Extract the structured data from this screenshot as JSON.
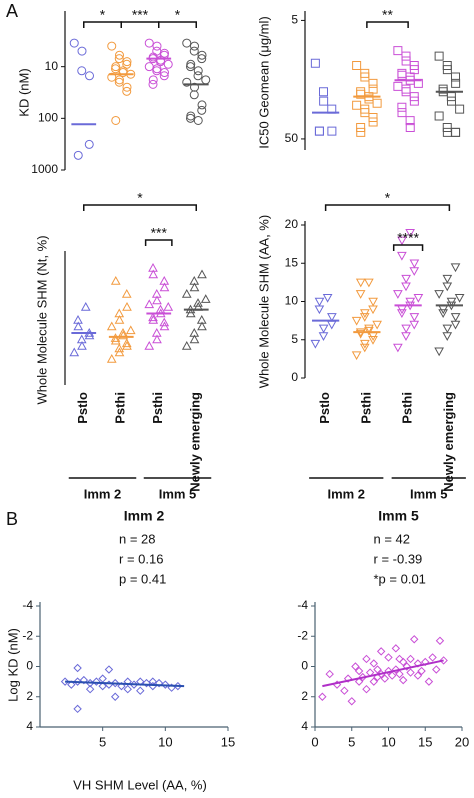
{
  "panel_labels": [
    "A",
    "B"
  ],
  "chart_data": [
    {
      "type": "dot",
      "ylabel": "KD (nM)",
      "log": true,
      "ylim": [
        1000,
        1
      ],
      "yticks": [
        10,
        100,
        1000
      ],
      "marker": "circle",
      "groups": [
        {
          "color": "#6a6ad8",
          "values": [
            3.5,
            5,
            12,
            15,
            320,
            520
          ],
          "center": 130
        },
        {
          "color": "#f29a3e",
          "values": [
            4,
            6,
            7,
            8,
            9,
            10,
            11,
            12,
            13,
            14,
            16,
            18,
            20,
            25,
            30,
            110
          ],
          "center": 14
        },
        {
          "color": "#c94fd6",
          "values": [
            3.5,
            4,
            5,
            5.5,
            6,
            6.5,
            7,
            7.5,
            8,
            9,
            10,
            11,
            12,
            13,
            15,
            18,
            22
          ],
          "center": 7
        },
        {
          "color": "#555555",
          "values": [
            3.5,
            4,
            5,
            6,
            7,
            9,
            10,
            12,
            15,
            18,
            20,
            25,
            35,
            55,
            70,
            90,
            100,
            110
          ],
          "center": 22
        }
      ],
      "brackets": [
        {
          "from": 1,
          "to": 2,
          "label": "*"
        },
        {
          "from": 2,
          "to": 3,
          "label": "***"
        },
        {
          "from": 3,
          "to": 4,
          "label": "*"
        }
      ]
    },
    {
      "type": "dot",
      "ylabel": "IC50 Geomean (μg/ml)",
      "log": true,
      "ylim": [
        62,
        4.5
      ],
      "yticks": [
        5,
        50
      ],
      "marker": "square",
      "groups": [
        {
          "color": "#6a6ad8",
          "values": [
            11.5,
            20,
            24,
            28,
            43,
            43,
            43
          ],
          "center": 30
        },
        {
          "color": "#f29a3e",
          "values": [
            12,
            14,
            15,
            17,
            19,
            20,
            21,
            22,
            23,
            25,
            26,
            28,
            30,
            33,
            36,
            40,
            44
          ],
          "center": 22
        },
        {
          "color": "#c94fd6",
          "values": [
            9,
            10,
            11,
            12,
            13,
            14,
            14.5,
            15,
            16,
            17,
            18,
            19,
            20,
            22,
            24,
            27,
            30,
            35,
            40
          ],
          "center": 16
        },
        {
          "color": "#555555",
          "values": [
            10,
            12,
            13,
            15,
            17,
            19,
            20,
            22,
            24,
            28,
            32,
            40,
            44,
            44,
            44
          ],
          "center": 20
        }
      ],
      "brackets": [
        {
          "from": 2,
          "to": 3,
          "label": "**"
        }
      ]
    },
    {
      "type": "dot",
      "ylabel": "Whole Molecule SHM (Nt, %)",
      "ylim": [
        0,
        10
      ],
      "marker": "triangle-up",
      "categories": [
        "Pstlo",
        "Psthi",
        "Psthi",
        "Newly emerging"
      ],
      "group_labels": [
        {
          "label": "Imm 2",
          "from": 0,
          "to": 1
        },
        {
          "label": "Imm 5",
          "from": 2,
          "to": 3
        }
      ],
      "groups": [
        {
          "color": "#6a6ad8",
          "values": [
            2.5,
            3,
            3.5,
            3.8,
            4,
            4.5,
            5,
            6
          ],
          "center": 4
        },
        {
          "color": "#f29a3e",
          "values": [
            2,
            2.5,
            2.8,
            3,
            3.2,
            3.4,
            3.6,
            3.8,
            4,
            4.2,
            4.5,
            5,
            5.5,
            6,
            7,
            8
          ],
          "center": 3.7
        },
        {
          "color": "#c94fd6",
          "values": [
            3,
            3.5,
            4,
            4.5,
            4.8,
            5,
            5.2,
            5.5,
            5.8,
            6,
            6.2,
            6.5,
            7,
            7.5,
            8,
            8.5,
            9
          ],
          "center": 5.5
        },
        {
          "color": "#555555",
          "values": [
            3,
            3.5,
            4,
            4.5,
            5,
            5.5,
            5.8,
            6,
            6.3,
            6.6,
            7,
            7.5,
            8,
            8.5
          ],
          "center": 5.8
        }
      ],
      "brackets": [
        {
          "from": 0,
          "to": 3,
          "label": "*"
        },
        {
          "from": 2,
          "to": 2,
          "label": "***"
        }
      ]
    },
    {
      "type": "dot",
      "ylabel": "Whole Molecule SHM (AA, %)",
      "ylim": [
        0,
        20
      ],
      "yticks": [
        0,
        5,
        10,
        15,
        20
      ],
      "marker": "triangle-down",
      "categories": [
        "Pstlo",
        "Psthi",
        "Psthi",
        "Newly emerging"
      ],
      "group_labels": [
        {
          "label": "Imm 2",
          "from": 0,
          "to": 1
        },
        {
          "label": "Imm 5",
          "from": 2,
          "to": 3
        }
      ],
      "groups": [
        {
          "color": "#6a6ad8",
          "values": [
            4.5,
            5.5,
            6.5,
            7,
            8,
            9,
            10,
            10.5
          ],
          "center": 7.5
        },
        {
          "color": "#f29a3e",
          "values": [
            3,
            4,
            4.5,
            5,
            5.5,
            5.8,
            6,
            6.2,
            6.5,
            7,
            7.5,
            8,
            8.5,
            9,
            10,
            11,
            12.5,
            12.5
          ],
          "center": 6
        },
        {
          "color": "#c94fd6",
          "values": [
            4,
            5.5,
            6.5,
            7,
            8,
            8.5,
            9,
            9.5,
            10,
            10.5,
            11,
            12,
            13,
            14,
            15,
            16,
            18,
            19
          ],
          "center": 9.5
        },
        {
          "color": "#555555",
          "values": [
            3.5,
            5.5,
            6.5,
            7,
            8,
            8.5,
            9,
            9.5,
            10,
            10.5,
            11,
            12,
            13,
            14.5
          ],
          "center": 9.5
        }
      ],
      "brackets": [
        {
          "from": 0,
          "to": 3,
          "label": "*"
        },
        {
          "from": 2,
          "to": 2,
          "label": "****"
        }
      ]
    },
    {
      "type": "scatter",
      "title": "Imm 2",
      "stats": [
        "n = 28",
        "r = 0.16",
        "p = 0.41"
      ],
      "color": "#6a6ad8",
      "line_color": "#2a4fb0",
      "xlabel": "VH SHM Level (AA, %)",
      "ylabel": "Log KD (nM)",
      "xlim": [
        0,
        15
      ],
      "xticks": [
        5,
        10,
        15
      ],
      "ylim": [
        4,
        -4
      ],
      "yticks": [
        -4,
        -2,
        0,
        2,
        4
      ],
      "x": [
        2,
        2.5,
        3,
        3,
        3.5,
        4,
        4,
        4.5,
        5,
        5,
        5.5,
        6,
        6,
        6.5,
        7,
        7,
        7.5,
        8,
        8,
        8.5,
        9,
        9,
        9.5,
        10,
        10.5,
        11,
        3,
        5.5
      ],
      "y": [
        1,
        1.2,
        2.8,
        1,
        0.9,
        1.1,
        1.5,
        1,
        0.8,
        1.3,
        1.2,
        1.1,
        2,
        1.3,
        1,
        1.5,
        1.2,
        1,
        1.6,
        1.1,
        1,
        1.3,
        1.1,
        1.2,
        1.4,
        1.3,
        0.1,
        0.2
      ],
      "fit": {
        "x": [
          2,
          11.5
        ],
        "y": [
          1.0,
          1.3
        ]
      }
    },
    {
      "type": "scatter",
      "title": "Imm 5",
      "stats": [
        "n = 42",
        "r = -0.39",
        "*p = 0.01"
      ],
      "color": "#c94fd6",
      "line_color": "#b02fc8",
      "xlim": [
        0,
        20
      ],
      "xticks": [
        0,
        5,
        10,
        15,
        20
      ],
      "ylim": [
        4,
        -4
      ],
      "yticks": [
        -4,
        -2,
        0,
        2,
        4
      ],
      "x": [
        1,
        2,
        3,
        4,
        4.5,
        5,
        5.5,
        6,
        6,
        6.5,
        7,
        7,
        7.5,
        8,
        8,
        8.5,
        9,
        9,
        9.5,
        10,
        10,
        10.5,
        11,
        11,
        11.5,
        12,
        12,
        12.5,
        13,
        13,
        13.5,
        14,
        14,
        14.5,
        15,
        15.5,
        16,
        16.5,
        17,
        17.5,
        8.5,
        11.5
      ],
      "y": [
        2,
        0.5,
        1.2,
        1.6,
        0.8,
        2.3,
        0,
        1,
        0.3,
        0.7,
        -0.5,
        1.5,
        0.4,
        -0.2,
        1,
        0.2,
        -1,
        0.5,
        0.8,
        -0.6,
        0.3,
        0.6,
        -1.2,
        0.2,
        0.5,
        -0.3,
        0.9,
        0,
        -0.5,
        0.4,
        -1.8,
        -0.2,
        0.6,
        0.3,
        -0.3,
        1,
        -0.6,
        0.2,
        -1.7,
        -0.4,
        0.7,
        -0.5
      ],
      "fit": {
        "x": [
          1,
          17.5
        ],
        "y": [
          1.3,
          -0.4
        ]
      }
    }
  ]
}
